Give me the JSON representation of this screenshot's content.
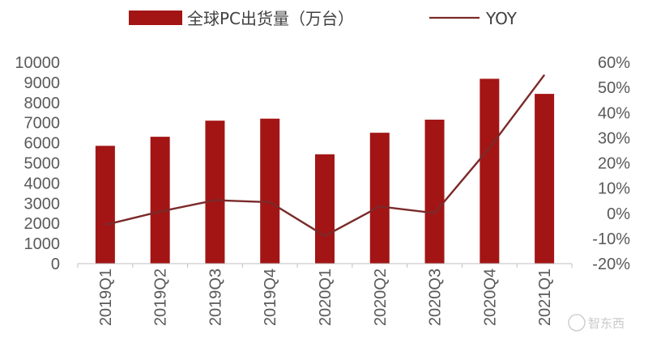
{
  "chart_data": {
    "type": "bar+line",
    "categories": [
      "2019Q1",
      "2019Q2",
      "2019Q3",
      "2019Q4",
      "2020Q1",
      "2020Q2",
      "2020Q3",
      "2020Q4",
      "2021Q1"
    ],
    "series": [
      {
        "name": "全球PC出货量（万台）",
        "type": "bar",
        "axis": "left",
        "color": "#a31515",
        "values": [
          5850,
          6300,
          7100,
          7200,
          5430,
          6500,
          7150,
          9180,
          8430
        ]
      },
      {
        "name": "YOY",
        "type": "line",
        "axis": "right",
        "color": "#7b2a2a",
        "values": [
          -4.6,
          0.7,
          5.2,
          4.4,
          -9.0,
          2.7,
          0.1,
          26.0,
          55.0
        ]
      }
    ],
    "y_left": {
      "min": 0,
      "max": 10000,
      "step": 1000,
      "ticks": [
        "0",
        "1000",
        "2000",
        "3000",
        "4000",
        "5000",
        "6000",
        "7000",
        "8000",
        "9000",
        "10000"
      ]
    },
    "y_right": {
      "min": -20,
      "max": 60,
      "step": 10,
      "ticks": [
        "-20%",
        "-10%",
        "0%",
        "10%",
        "20%",
        "30%",
        "40%",
        "50%",
        "60%"
      ]
    },
    "grid": false,
    "legend_position": "top"
  },
  "watermark": "智东西"
}
